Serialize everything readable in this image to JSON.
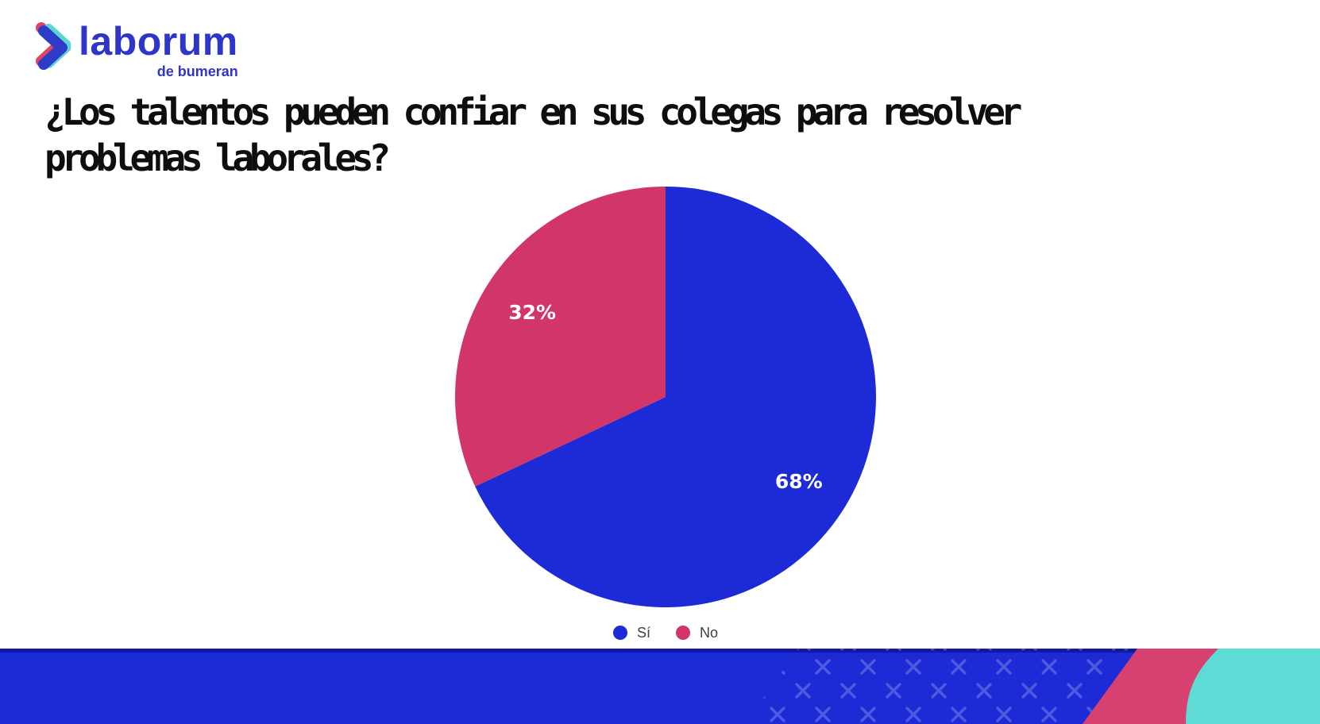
{
  "page": {
    "background": "#FFFFFF"
  },
  "logo": {
    "brand": "laborum",
    "sub_brand": "de bumeran",
    "brand_color": "#2F35C8",
    "icon": "laborum-chevron-icon",
    "icon_colors": {
      "red": "#DE4560",
      "teal": "#5AD6CF",
      "blue": "#2E3BC8"
    }
  },
  "title": {
    "line1": "¿Los talentos pueden confiar en sus colegas para resolver",
    "line2": "problemas laborales?",
    "color": "#0E0E0E"
  },
  "chart_data": {
    "type": "pie",
    "title": "¿Los talentos pueden confiar en sus colegas para resolver problemas laborales?",
    "slices": [
      {
        "label": "Sí",
        "value": 68,
        "percent_label": "68%",
        "color": "#1C2BD5"
      },
      {
        "label": "No",
        "value": 32,
        "percent_label": "32%",
        "color": "#D23568"
      }
    ],
    "start_angle_deg": 0,
    "direction": "clockwise",
    "data_label_color": "#FFFFFF",
    "data_label_radius_ratio": 0.75,
    "legend_position": "bottom",
    "legend_text_color": "#3C4043"
  },
  "footer": {
    "band_color": "#1D2BD6",
    "top_line_color": "#1118A4",
    "stripe_color": "#D8406F",
    "corner_color": "#5EDBD4",
    "pattern": "x-marks",
    "pattern_color": "rgba(255,255,255,0.22)"
  }
}
